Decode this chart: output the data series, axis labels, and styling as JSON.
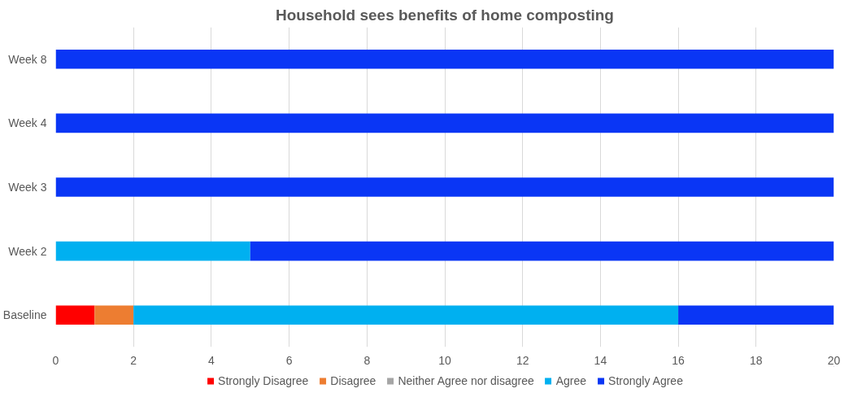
{
  "chart_data": {
    "type": "bar",
    "orientation": "horizontal",
    "stacked": true,
    "title": "Household sees benefits of home composting",
    "categories": [
      "Week 8",
      "Week 4",
      "Week 3",
      "Week 2",
      "Baseline"
    ],
    "series": [
      {
        "name": "Strongly Disagree",
        "color": "#ff0000",
        "values": [
          0,
          0,
          0,
          0,
          1
        ]
      },
      {
        "name": "Disagree",
        "color": "#ed7d31",
        "values": [
          0,
          0,
          0,
          0,
          1
        ]
      },
      {
        "name": "Neither Agree nor disagree",
        "color": "#a5a5a5",
        "values": [
          0,
          0,
          0,
          0,
          0
        ]
      },
      {
        "name": "Agree",
        "color": "#00b0f0",
        "values": [
          0,
          0,
          0,
          5,
          14
        ]
      },
      {
        "name": "Strongly Agree",
        "color": "#0a36f5",
        "values": [
          20,
          20,
          20,
          15,
          4
        ]
      }
    ],
    "xlim": [
      0,
      20
    ],
    "xticks": [
      0,
      2,
      4,
      6,
      8,
      10,
      12,
      14,
      16,
      18,
      20
    ],
    "grid": "x",
    "legend": "bottom"
  }
}
